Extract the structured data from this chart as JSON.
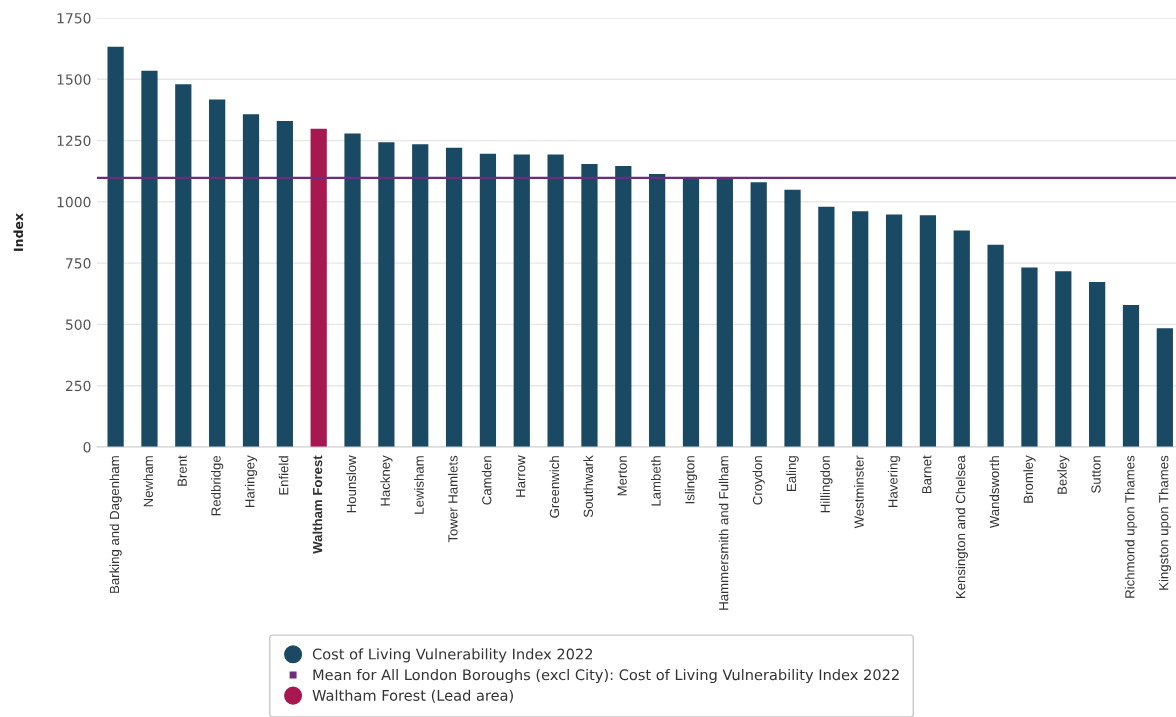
{
  "chart_data": {
    "type": "bar",
    "ylabel": "Index",
    "categories": [
      "Barking and Dagenham",
      "Newham",
      "Brent",
      "Redbridge",
      "Haringey",
      "Enfield",
      "Waltham Forest",
      "Hounslow",
      "Hackney",
      "Lewisham",
      "Tower Hamlets",
      "Camden",
      "Harrow",
      "Greenwich",
      "Southwark",
      "Merton",
      "Lambeth",
      "Islington",
      "Hammersmith and Fulham",
      "Croydon",
      "Ealing",
      "Hillingdon",
      "Westminster",
      "Havering",
      "Barnet",
      "Kensington and Chelsea",
      "Wandsworth",
      "Bromley",
      "Bexley",
      "Sutton",
      "Richmond upon Thames",
      "Kingston upon Thames"
    ],
    "series": [
      {
        "name": "Cost of Living Vulnerability Index 2022",
        "color": "#1a4a63",
        "values": [
          1633,
          1535,
          1480,
          1418,
          1357,
          1330,
          null,
          1279,
          1243,
          1235,
          1221,
          1196,
          1193,
          1193,
          1154,
          1146,
          1114,
          1101,
          1100,
          1080,
          1049,
          980,
          962,
          948,
          945,
          883,
          825,
          732,
          717,
          673,
          579,
          484
        ]
      },
      {
        "name": "Waltham Forest (Lead area)",
        "color": "#a81850",
        "values": [
          null,
          null,
          null,
          null,
          null,
          null,
          1298,
          null,
          null,
          null,
          null,
          null,
          null,
          null,
          null,
          null,
          null,
          null,
          null,
          null,
          null,
          null,
          null,
          null,
          null,
          null,
          null,
          null,
          null,
          null,
          null,
          null
        ]
      }
    ],
    "stacked": true,
    "ylim": [
      0,
      1750
    ],
    "yticks": [
      0,
      250,
      500,
      750,
      1000,
      1250,
      1500,
      1750
    ],
    "grid": "y",
    "legend": "bottom",
    "ref_lines": [
      {
        "axis": "y",
        "value": 1098,
        "label": "Mean for All London Boroughs (excl City): Cost of Living Vulnerability Index 2022",
        "color": "#6b2d7c"
      }
    ]
  }
}
